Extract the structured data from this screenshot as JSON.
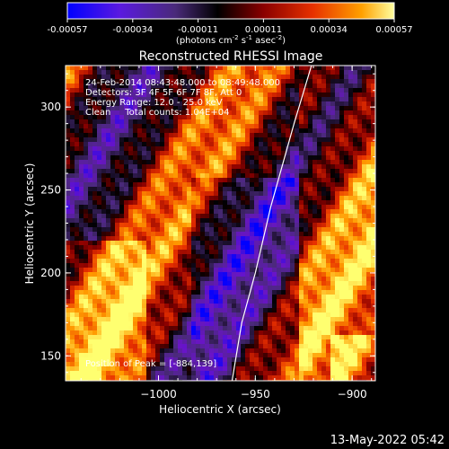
{
  "colorbar": {
    "ticks": [
      "-0.00057",
      "-0.00034",
      "-0.00011",
      "0.00011",
      "0.00034",
      "0.00057"
    ],
    "unit_label": "(photons cm",
    "unit_sup1": "-2",
    "unit_mid1": " s",
    "unit_sup2": "-1",
    "unit_mid2": " asec",
    "unit_sup3": "-2",
    "unit_end": ")"
  },
  "chart_data": {
    "type": "heatmap",
    "title": "Reconstructed RHESSI Image",
    "xlabel": "Heliocentric X (arcsec)",
    "ylabel": "Heliocentric Y (arcsec)",
    "xlim": [
      -1048,
      -888
    ],
    "ylim": [
      135,
      325
    ],
    "value_range": [
      -0.00057,
      0.00057
    ],
    "x_ticks": [
      -1000,
      -950,
      -900
    ],
    "x_tick_labels": [
      "−1000",
      "−950",
      "−900"
    ],
    "y_ticks": [
      150,
      200,
      250,
      300
    ],
    "y_tick_labels": [
      "150",
      "200",
      "250",
      "300"
    ],
    "info_lines": [
      "24-Feb-2014 08:43:48.000 to 08:49:48.000",
      "Detectors: 3F 4F 5F 6F 7F 8F, Att 0",
      "Energy Range: 12.0 - 25.0 keV",
      "Clean     Total counts: 1.04E+04"
    ],
    "peak_label": "Position of Peak = [-884,139]",
    "limb_curve": [
      [
        -962,
        135
      ],
      [
        -957,
        170
      ],
      [
        -950,
        200
      ],
      [
        -942,
        240
      ],
      [
        -930,
        290
      ],
      [
        -921,
        325
      ]
    ],
    "colormap": [
      "#0000ff",
      "#6a14c8",
      "#4a2a7a",
      "#000000",
      "#8a0000",
      "#e83000",
      "#ff9a00",
      "#ffff70"
    ]
  },
  "footer": {
    "timestamp": "13-May-2022 05:42"
  }
}
